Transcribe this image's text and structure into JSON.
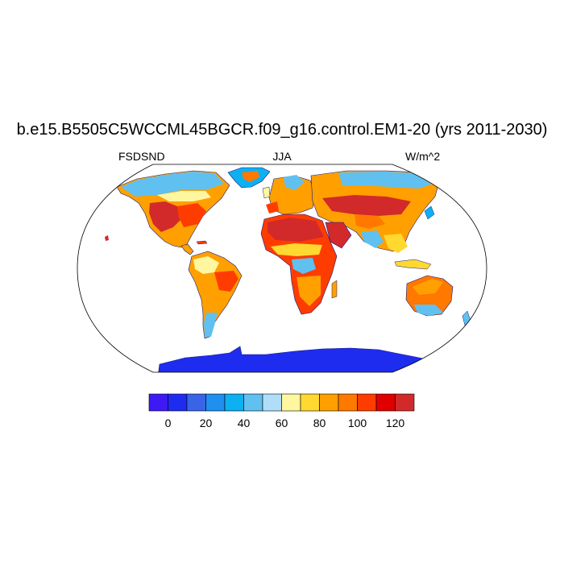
{
  "header": {
    "title": "b.e15.B5505C5WCCML45BGCR.f09_g16.control.EM1-20 (yrs 2011-2030)",
    "left_label": "FSDSND",
    "center_label": "JJA",
    "right_label": "W/m^2"
  },
  "map": {
    "projection": "Robinson",
    "land_colors": {
      "antarctica": "#1e2cf0",
      "greenland": "#0db0f0",
      "high_latitudes": "#60c0f0",
      "midlatitudes": "#ffa000",
      "subtropical_deserts": "#d22a2a",
      "tropics_humid": "#ffd830",
      "ocean": "#ffffff"
    }
  },
  "colorbar": {
    "colors": [
      "#3e19f5",
      "#1e2cf0",
      "#3a64e8",
      "#1f8ff0",
      "#0db0f0",
      "#60c0f0",
      "#b0def8",
      "#fff6a0",
      "#ffd830",
      "#ffa000",
      "#ff7800",
      "#ff3c00",
      "#e00000",
      "#d22a2a"
    ],
    "tick_labels": [
      "0",
      "20",
      "40",
      "60",
      "80",
      "100",
      "120"
    ]
  }
}
